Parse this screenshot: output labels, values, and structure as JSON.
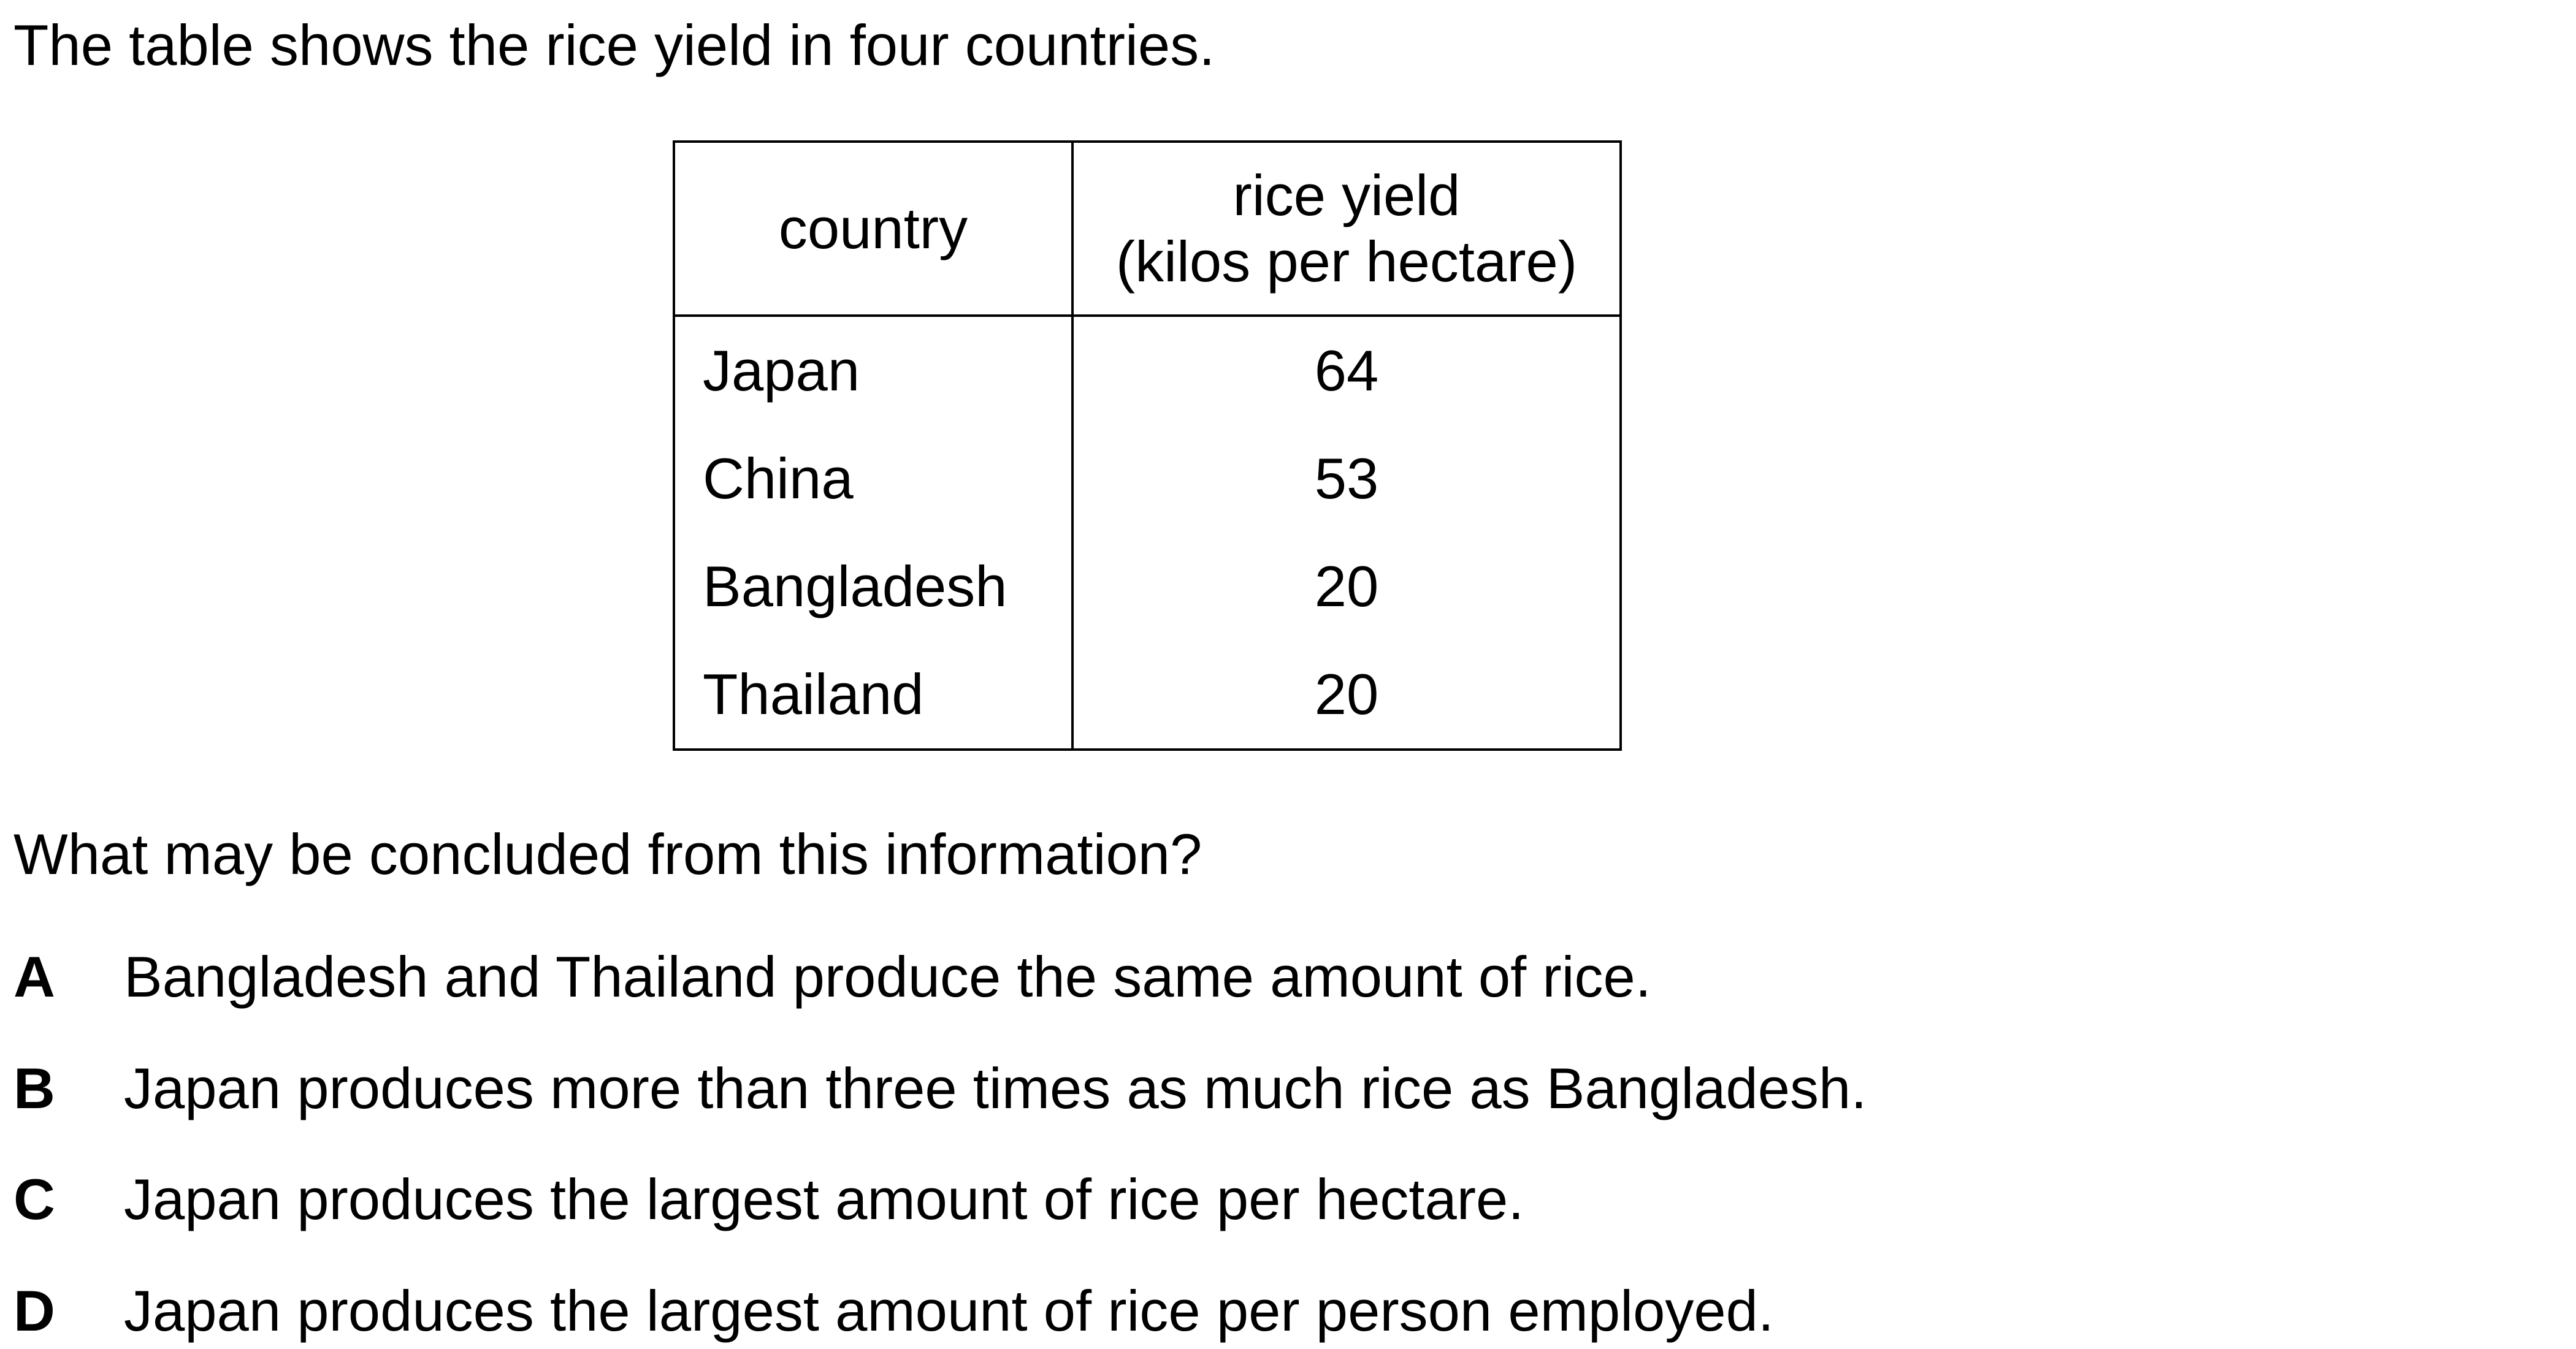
{
  "intro_text": "The table shows the rice yield in four countries.",
  "table": {
    "headers": {
      "country": "country",
      "yield_line1": "rice yield",
      "yield_line2": "(kilos per hectare)"
    },
    "rows": [
      {
        "country": "Japan",
        "yield": "64"
      },
      {
        "country": "China",
        "yield": "53"
      },
      {
        "country": "Bangladesh",
        "yield": "20"
      },
      {
        "country": "Thailand",
        "yield": "20"
      }
    ]
  },
  "question": "What may be concluded from this information?",
  "options": [
    {
      "letter": "A",
      "text": "Bangladesh and Thailand produce the same amount of rice."
    },
    {
      "letter": "B",
      "text": "Japan produces more than three times as much rice as Bangladesh."
    },
    {
      "letter": "C",
      "text": "Japan produces the largest amount of rice per hectare."
    },
    {
      "letter": "D",
      "text": "Japan produces the largest amount of rice per person employed."
    }
  ]
}
